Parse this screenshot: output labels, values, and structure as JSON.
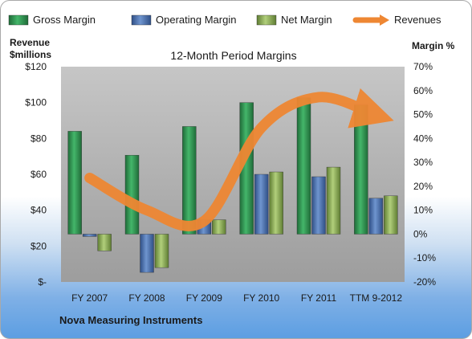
{
  "chart_data": {
    "type": "bar",
    "title": "12-Month Period Margins",
    "ylabel_left": "Revenue\n$millions",
    "ylabel_right": "Margin %",
    "footer": "Nova Measuring Instruments",
    "categories": [
      "FY 2007",
      "FY 2008",
      "FY 2009",
      "FY 2010",
      "FY 2011",
      "TTM 9-2012"
    ],
    "ylim_left": [
      0,
      120
    ],
    "yticks_left": [
      "$-",
      "$20",
      "$40",
      "$60",
      "$80",
      "$100",
      "$120"
    ],
    "ylim_right": [
      -20,
      70
    ],
    "yticks_right": [
      "-20%",
      "-10%",
      "0%",
      "10%",
      "20%",
      "30%",
      "40%",
      "50%",
      "60%",
      "70%"
    ],
    "grid": false,
    "legend_position": "top",
    "series": [
      {
        "name": "Gross Margin",
        "axis": "right",
        "color": "#2e8b4f",
        "values": [
          43,
          33,
          45,
          55,
          57,
          54
        ]
      },
      {
        "name": "Operating Margin",
        "axis": "right",
        "color": "#4a72b0",
        "values": [
          -1,
          -16,
          6,
          25,
          24,
          15
        ]
      },
      {
        "name": "Net Margin",
        "axis": "right",
        "color": "#8fb15a",
        "values": [
          -7,
          -14,
          6,
          26,
          28,
          16
        ]
      },
      {
        "name": "Revenues",
        "axis": "left",
        "color": "#ee8733",
        "type": "line",
        "values": [
          58,
          40,
          34,
          86,
          103,
          93
        ]
      }
    ]
  }
}
